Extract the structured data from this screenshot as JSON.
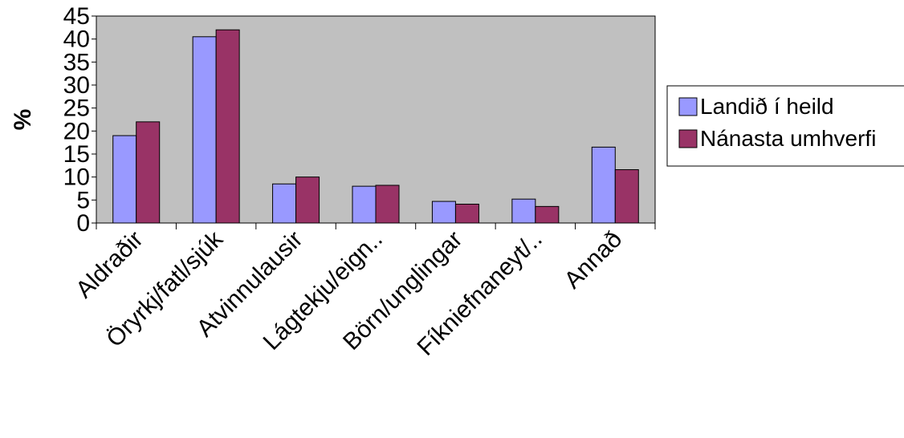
{
  "chart_data": {
    "type": "bar",
    "title": "",
    "xlabel": "",
    "ylabel": "%",
    "ylim": [
      0,
      45
    ],
    "yticks": [
      0,
      5,
      10,
      15,
      20,
      25,
      30,
      35,
      40,
      45
    ],
    "grid": false,
    "legend_position": "right",
    "categories": [
      "Aldraðir",
      "Öryrkj/fatl/sjúk",
      "Atvinnulausir",
      "Lágtekju/eign..",
      "Börn/unglingar",
      "Fíkniefnaneyt/..",
      "Annað"
    ],
    "series": [
      {
        "name": "Landið í heild",
        "color": "#9999ff",
        "values": [
          19,
          40.5,
          8.5,
          8,
          4.7,
          5.2,
          16.5
        ]
      },
      {
        "name": "Nánasta umhverfi",
        "color": "#993366",
        "values": [
          22,
          42,
          10,
          8.2,
          4.1,
          3.6,
          11.6
        ]
      }
    ],
    "plot_background": "#c0c0c0"
  }
}
